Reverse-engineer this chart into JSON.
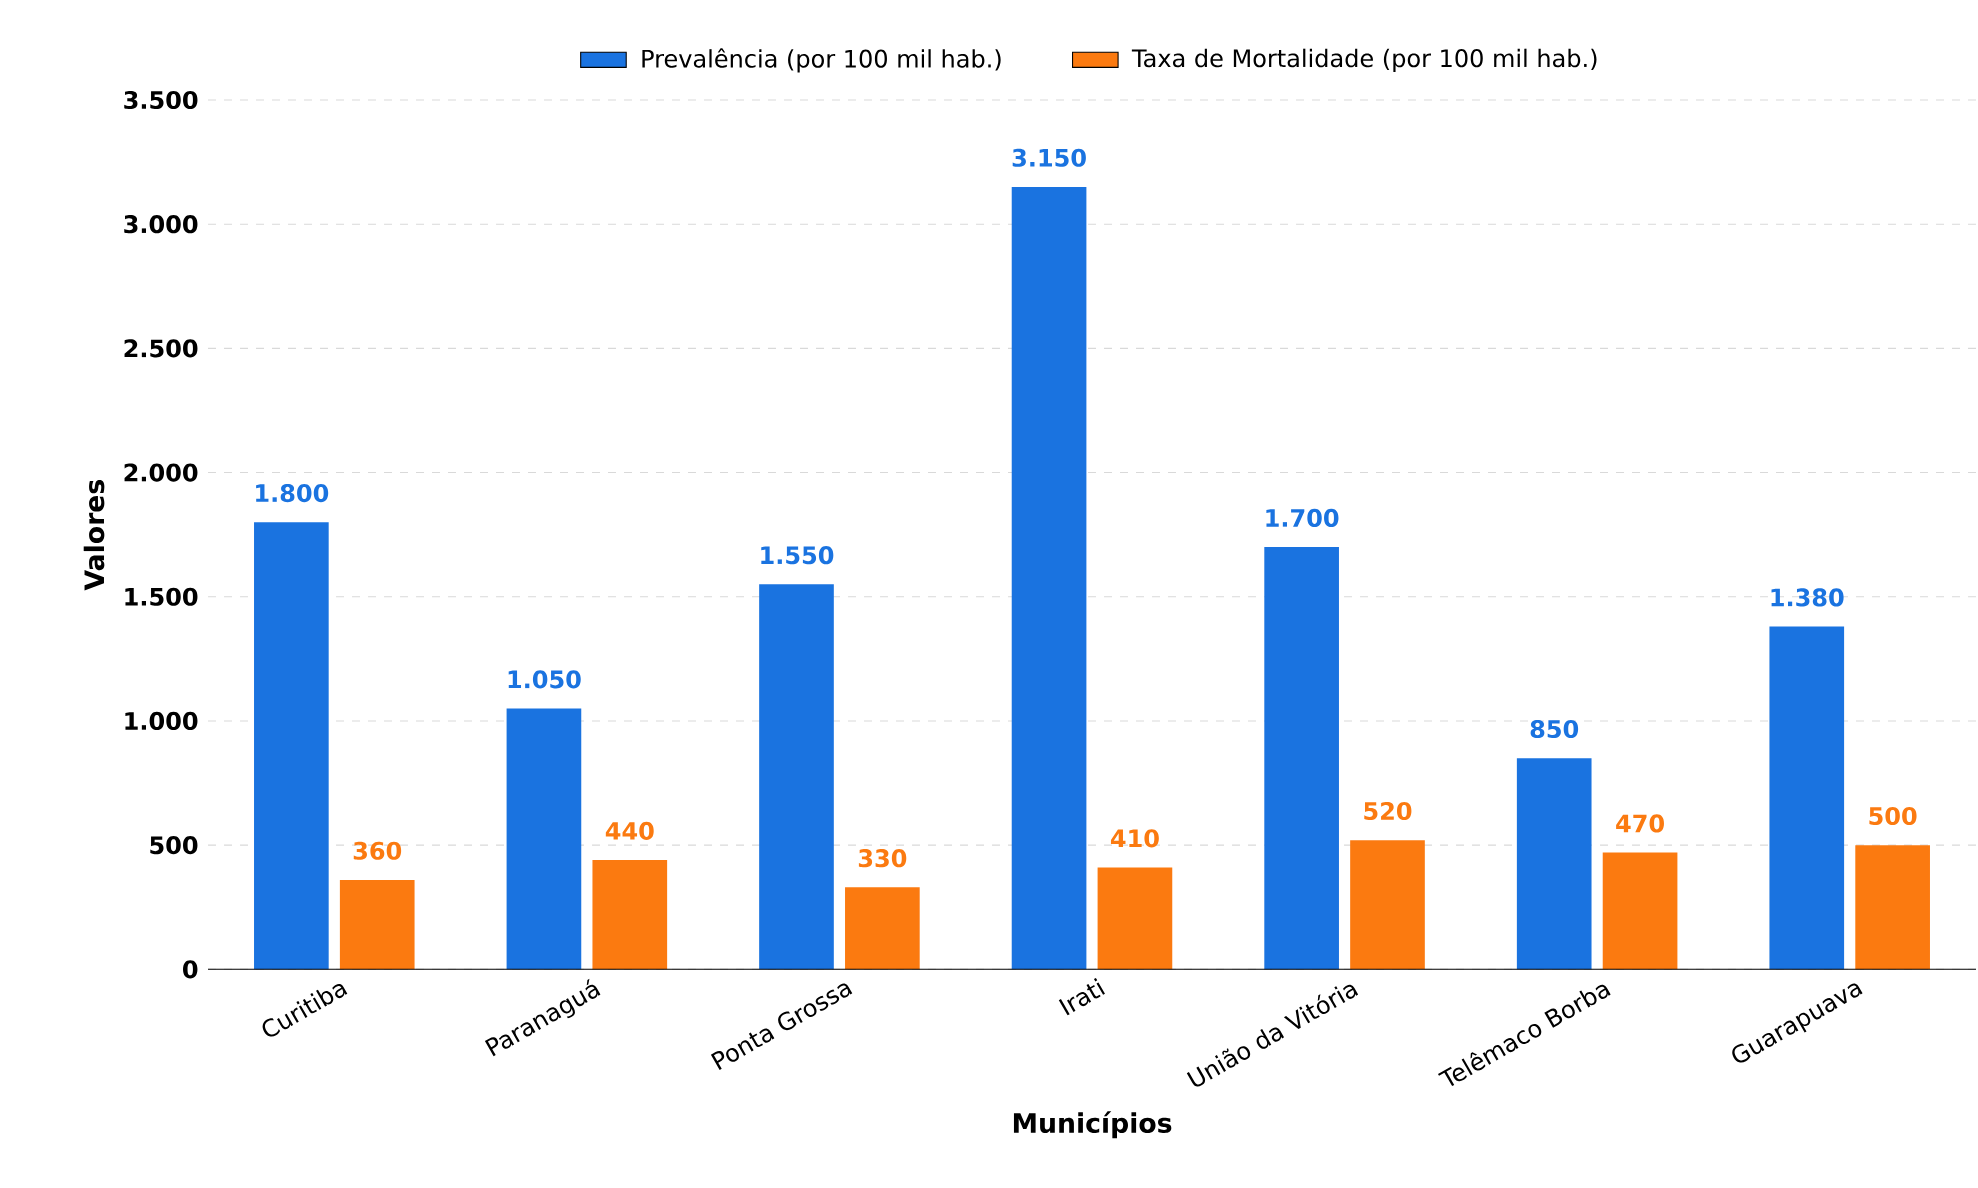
{
  "chart_data": {
    "type": "bar",
    "xlabel": "Municípios",
    "ylabel": "Valores",
    "categories": [
      "Curitiba",
      "Paranaguá",
      "Ponta Grossa",
      "Irati",
      "União da Vitória",
      "Telêmaco Borba",
      "Guarapuava"
    ],
    "series": [
      {
        "name": "Prevalência (por 100 mil hab.)",
        "color": "#1a73e0",
        "values": [
          1800,
          1050,
          1550,
          3150,
          1700,
          850,
          1380
        ],
        "value_labels": [
          "1.800",
          "1.050",
          "1.550",
          "3.150",
          "1.700",
          "850",
          "1.380"
        ]
      },
      {
        "name": "Taxa de Mortalidade (por 100 mil hab.)",
        "color": "#fb7a10",
        "values": [
          360,
          440,
          330,
          410,
          520,
          470,
          500
        ],
        "value_labels": [
          "360",
          "440",
          "330",
          "410",
          "520",
          "470",
          "500"
        ]
      }
    ],
    "ylim": [
      0,
      3500
    ],
    "yticks": [
      {
        "value": 0,
        "label": "0"
      },
      {
        "value": 500,
        "label": "500"
      },
      {
        "value": 1000,
        "label": "1.000"
      },
      {
        "value": 1500,
        "label": "1.500"
      },
      {
        "value": 2000,
        "label": "2.000"
      },
      {
        "value": 2500,
        "label": "2.500"
      },
      {
        "value": 3000,
        "label": "3.000"
      },
      {
        "value": 3500,
        "label": "3.500"
      }
    ],
    "grid": "y",
    "legend": "top"
  }
}
